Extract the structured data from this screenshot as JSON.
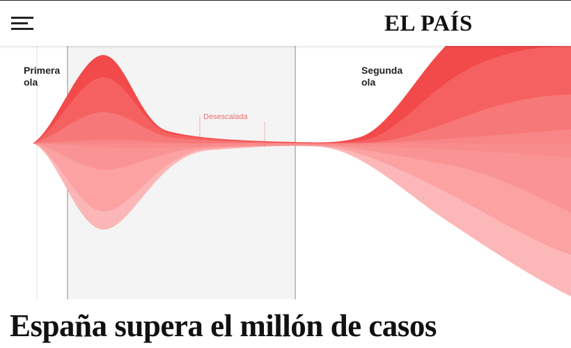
{
  "header": {
    "logo_text": "EL PAÍS",
    "menu_icon": "hamburger-menu-icon"
  },
  "graphic": {
    "labels": {
      "first_wave": "Primera ola",
      "second_wave": "Segunda ola",
      "de_escalation": "Desescalada"
    },
    "colors": {
      "background_shaded": "#f4f4f4",
      "stream_dark": "#f03c3c",
      "stream_light": "#fca5a5",
      "divider": "#9a9a9a",
      "annotation": "#e8706c"
    }
  },
  "article": {
    "headline": "España supera el millón de casos"
  }
}
